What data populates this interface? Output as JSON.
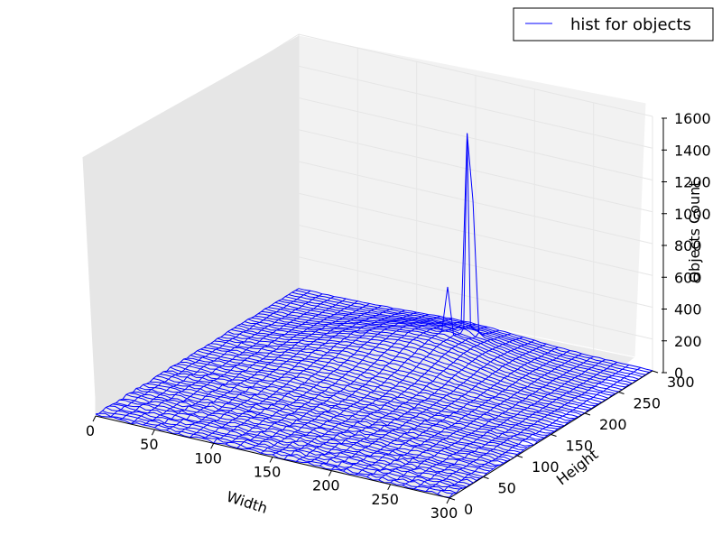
{
  "chart_data": {
    "type": "line",
    "title": "",
    "legend": {
      "placement": "top-right",
      "entries": [
        "hist for objects"
      ]
    },
    "series": [
      {
        "name": "hist for objects",
        "color": "#0000ff"
      }
    ],
    "xlabel": "Width",
    "ylabel": "Height",
    "zlabel": "Objects Count",
    "xlim": [
      0,
      300
    ],
    "ylim": [
      0,
      300
    ],
    "zlim": [
      0,
      1600
    ],
    "x_ticks": [
      "0",
      "50",
      "100",
      "150",
      "200",
      "250",
      "300"
    ],
    "y_ticks": [
      "0",
      "50",
      "100",
      "150",
      "200",
      "250",
      "300"
    ],
    "z_ticks": [
      "0",
      "200",
      "400",
      "600",
      "800",
      "1000",
      "1200",
      "1400",
      "1600"
    ],
    "grid": true,
    "projection": "3d",
    "peaks": [
      {
        "x": 160,
        "y": 270,
        "z": 1230
      },
      {
        "x": 165,
        "y": 270,
        "z": 800
      },
      {
        "x": 155,
        "y": 250,
        "z": 300
      }
    ]
  }
}
